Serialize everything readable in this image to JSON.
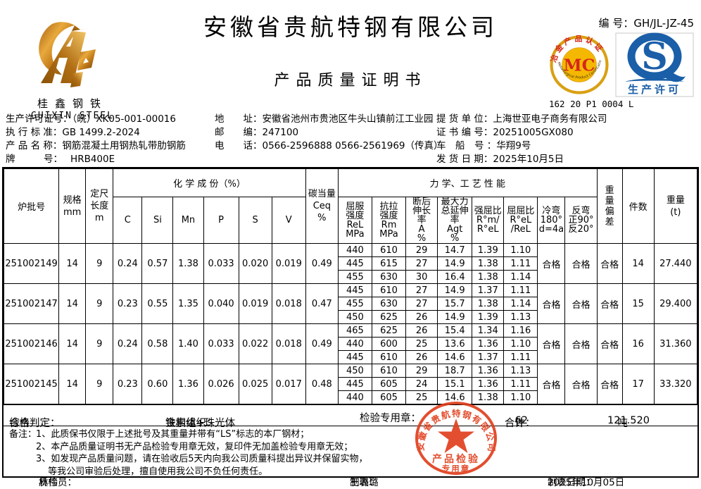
{
  "header": {
    "doc_no_label": "编 号：",
    "doc_no": "GH/JL-JZ-45",
    "company": "安徽省贵航特钢有限公司",
    "doc_title": "产品质量证明书",
    "brand": {
      "cn": "桂鑫钢铁",
      "en": "GUIXIN STEEL"
    },
    "mc_mark": {
      "arc_top": "冶金产品认证",
      "arc_bottom": "Metallurgical Product Certification",
      "center": "MC",
      "code": "162 20 P1 0004 L"
    },
    "qs_mark": {
      "letter": "S",
      "caption": "生产许可"
    }
  },
  "info": {
    "col1": [
      {
        "label": "生产许可证号：",
        "value": "（皖）XK05-001-00016"
      },
      {
        "label": "执 行 标 准：",
        "value": "GB 1499.2-2024"
      },
      {
        "label": "产 品 名 称：",
        "value": "钢筋混凝土用钢热轧带肋钢筋"
      },
      {
        "label": "牌　　　号：",
        "value": "　 HRB400E"
      }
    ],
    "col2": [
      {
        "label": "地　　址：",
        "value": "安徽省池州市贵池区牛头山镇前江工业园"
      },
      {
        "label": "邮　　编：",
        "value": "247100"
      },
      {
        "label": "电　　话：",
        "value": "0566-2596888  0566-2561969（传真）"
      }
    ],
    "col3": [
      {
        "label": "提 货 单 位：",
        "value": "上海世亚电子商务有限公司"
      },
      {
        "label": "证 书 编 号：",
        "value": "20251005GX080"
      },
      {
        "label": "车　船　号 ：",
        "value": "华翔9号"
      },
      {
        "label": "发 货 日 期：",
        "value": "2025年10月5日"
      }
    ]
  },
  "table": {
    "headers": {
      "heat_no": "炉批号",
      "spec": "规格\nmm",
      "length": "定尺\n长度\nm",
      "chem_group": "化 学 成 份（%）",
      "chem_cols": [
        "C",
        "Si",
        "Mn",
        "P",
        "S",
        "V"
      ],
      "ceq": "碳当量\nCeq\n%",
      "mech_group": "力 学、工 艺 性 能",
      "mech_cols": [
        "屈服\n强度\nReL\nMPa",
        "抗拉\n强度\nRm\nMPa",
        "断后\n伸长\n率\nA\n%",
        "最大力\n总延伸\n率\nAgt\n%",
        "强屈比\nR°m/\nR°eL",
        "屈屈比\nR°eL\n/ReL",
        "冷弯\n180°\nd=4a",
        "反弯\n正90°\n反20°"
      ],
      "weight_dev": "重\n量\n偏\n差",
      "pieces": "件数",
      "weight": "重量\n(t)"
    },
    "batches": [
      {
        "heat_no": "251002149",
        "spec": "14",
        "length": "9",
        "chem": [
          "0.24",
          "0.57",
          "1.38",
          "0.033",
          "0.020",
          "0.019"
        ],
        "ceq": "0.49",
        "mech": [
          [
            "440",
            "610",
            "29",
            "14.7",
            "1.39",
            "1.10"
          ],
          [
            "445",
            "615",
            "27",
            "14.9",
            "1.38",
            "1.11"
          ],
          [
            "455",
            "630",
            "30",
            "16.4",
            "1.38",
            "1.14"
          ]
        ],
        "cold_bend": "合格",
        "reverse_bend": "合格",
        "weight_dev": "合格",
        "pieces": "14",
        "weight": "27.440"
      },
      {
        "heat_no": "251002147",
        "spec": "14",
        "length": "9",
        "chem": [
          "0.23",
          "0.55",
          "1.35",
          "0.040",
          "0.019",
          "0.018"
        ],
        "ceq": "0.47",
        "mech": [
          [
            "445",
            "610",
            "27",
            "14.9",
            "1.37",
            "1.11"
          ],
          [
            "455",
            "630",
            "27",
            "15.7",
            "1.38",
            "1.14"
          ],
          [
            "450",
            "625",
            "26",
            "14.9",
            "1.39",
            "1.13"
          ]
        ],
        "cold_bend": "合格",
        "reverse_bend": "合格",
        "weight_dev": "合格",
        "pieces": "15",
        "weight": "29.400"
      },
      {
        "heat_no": "251002146",
        "spec": "14",
        "length": "9",
        "chem": [
          "0.24",
          "0.58",
          "1.40",
          "0.033",
          "0.022",
          "0.018"
        ],
        "ceq": "0.49",
        "mech": [
          [
            "465",
            "625",
            "26",
            "15.4",
            "1.34",
            "1.16"
          ],
          [
            "440",
            "600",
            "25",
            "13.6",
            "1.36",
            "1.10"
          ],
          [
            "445",
            "610",
            "26",
            "14.6",
            "1.37",
            "1.11"
          ]
        ],
        "cold_bend": "合格",
        "reverse_bend": "合格",
        "weight_dev": "合格",
        "pieces": "16",
        "weight": "31.360"
      },
      {
        "heat_no": "251002145",
        "spec": "14",
        "length": "9",
        "chem": [
          "0.23",
          "0.60",
          "1.36",
          "0.026",
          "0.025",
          "0.017"
        ],
        "ceq": "0.48",
        "mech": [
          [
            "450",
            "610",
            "29",
            "18.7",
            "1.36",
            "1.13"
          ],
          [
            "445",
            "605",
            "24",
            "15.1",
            "1.36",
            "1.11"
          ],
          [
            "440",
            "605",
            "25",
            "14.6",
            "1.38",
            "1.10"
          ]
        ],
        "cold_bend": "合格",
        "reverse_bend": "合格",
        "weight_dev": "合格",
        "pieces": "17",
        "weight": "33.320"
      }
    ]
  },
  "summary": {
    "judgement_label": "综合判定：",
    "judgement": "合格",
    "structure_label": "金相组织：",
    "structure": "铁素体+珠光体",
    "seal_label": "检验专用章：",
    "total_label": "合计：",
    "total_pieces": "62",
    "pieces_unit": "件",
    "total_weight": "121.520",
    "weight_unit": "吨"
  },
  "remarks": {
    "label": "备注：",
    "lines": "1、此质保书仅限于上述批号及其重量并带有“LS”标志的本厂钢材；\n2、本产品质量证明书无产品检验专用章无效，复印件无加盖检验专用章无效；\n3、如发现产品质量问题，请在验收后5天内向我公司质量科提出异议并保留实物，\n　 等我公司审验后处理，擅自使用我公司不负任何责任。"
  },
  "stamp": {
    "company": "安徽省贵航特钢有限公司",
    "line1": "产品检验",
    "line2": "专用章"
  },
  "footer": {
    "inspector_label": "质检员：",
    "inspector": "林伟",
    "tabulator_label": "制表：",
    "tabulator": "王璐璐",
    "date_label": "制表日期：",
    "date": "2025年10月05日"
  },
  "colors": {
    "stamp_red": "#e0401e",
    "mc_gold": "#d9a013",
    "mc_red": "#d4271c",
    "qs_blue": "#1a5fa8"
  }
}
